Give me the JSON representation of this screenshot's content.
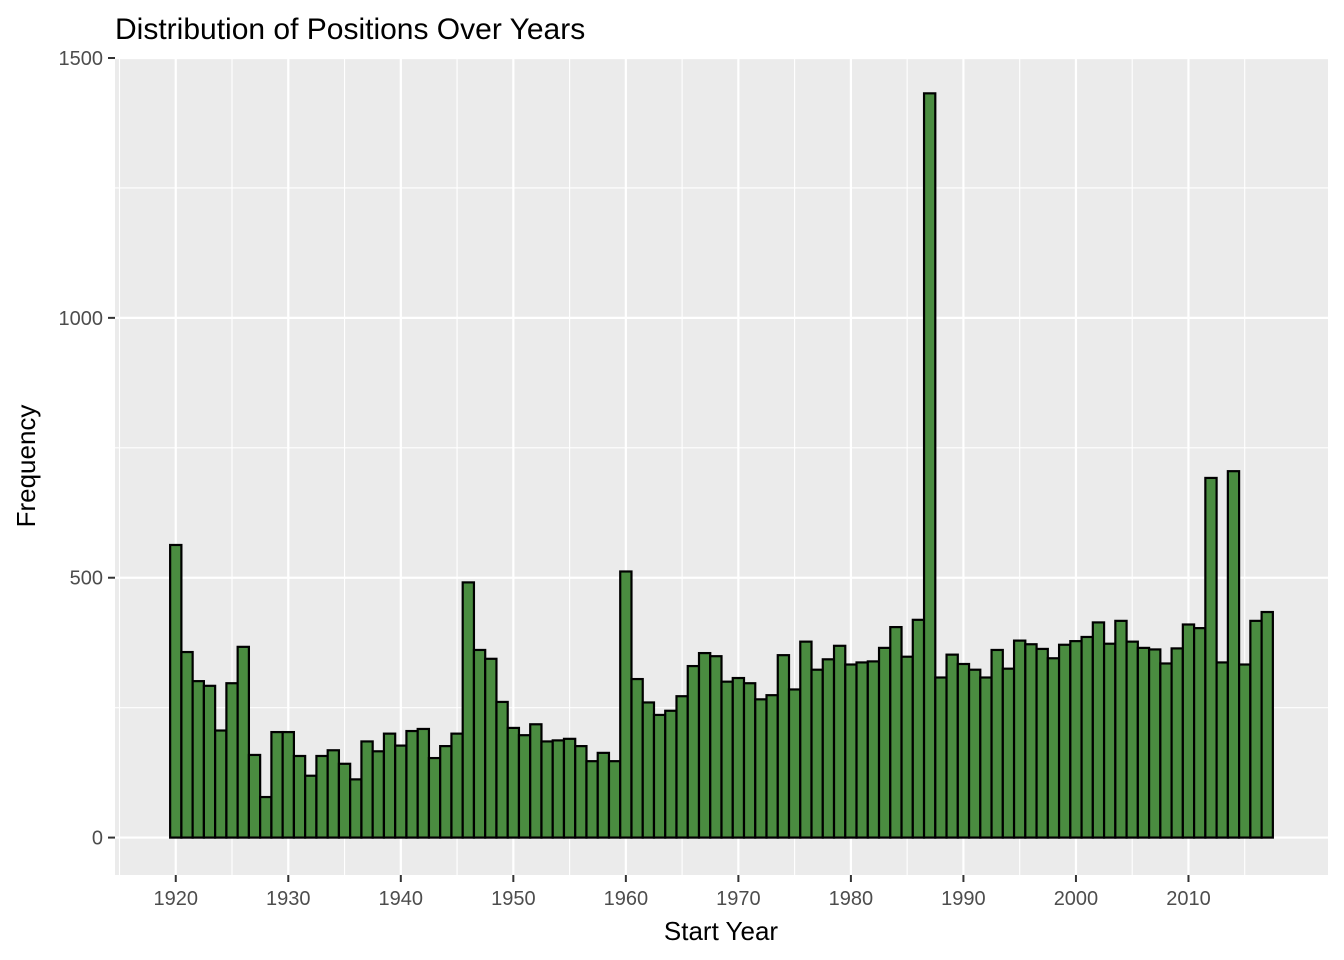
{
  "chart_data": {
    "type": "bar",
    "title": "Distribution of Positions Over Years",
    "xlabel": "Start Year",
    "ylabel": "Frequency",
    "xlim": [
      1914.6,
      2022.4
    ],
    "ylim": [
      -72,
      1500
    ],
    "x_ticks": [
      1920,
      1930,
      1940,
      1950,
      1960,
      1970,
      1980,
      1990,
      2000,
      2010
    ],
    "y_ticks": [
      0,
      500,
      1000,
      1500
    ],
    "grid": true,
    "legend": "none",
    "colors": {
      "bar_fill": "#4a8c40",
      "bar_outline": "#000000",
      "panel": "#ebebeb",
      "grid": "#ffffff"
    },
    "x": [
      1920,
      1921,
      1922,
      1923,
      1924,
      1925,
      1926,
      1927,
      1928,
      1929,
      1930,
      1931,
      1932,
      1933,
      1934,
      1935,
      1936,
      1937,
      1938,
      1939,
      1940,
      1941,
      1942,
      1943,
      1944,
      1945,
      1946,
      1947,
      1948,
      1949,
      1950,
      1951,
      1952,
      1953,
      1954,
      1955,
      1956,
      1957,
      1958,
      1959,
      1960,
      1961,
      1962,
      1963,
      1964,
      1965,
      1966,
      1967,
      1968,
      1969,
      1970,
      1971,
      1972,
      1973,
      1974,
      1975,
      1976,
      1977,
      1978,
      1979,
      1980,
      1981,
      1982,
      1983,
      1984,
      1985,
      1986,
      1987,
      1988,
      1989,
      1990,
      1991,
      1992,
      1993,
      1994,
      1995,
      1996,
      1997,
      1998,
      1999,
      2000,
      2001,
      2002,
      2003,
      2004,
      2005,
      2006,
      2007,
      2008,
      2009,
      2010,
      2011,
      2012,
      2013,
      2014,
      2015,
      2016,
      2017
    ],
    "values": [
      563,
      357,
      301,
      292,
      206,
      297,
      367,
      159,
      78,
      203,
      203,
      157,
      119,
      157,
      168,
      142,
      112,
      185,
      166,
      200,
      177,
      205,
      209,
      153,
      176,
      200,
      491,
      361,
      344,
      261,
      211,
      197,
      218,
      185,
      187,
      190,
      176,
      147,
      163,
      147,
      512,
      305,
      260,
      236,
      244,
      272,
      330,
      355,
      349,
      300,
      307,
      297,
      266,
      274,
      351,
      285,
      377,
      323,
      343,
      369,
      333,
      337,
      339,
      365,
      405,
      348,
      419,
      1432,
      308,
      352,
      334,
      323,
      308,
      361,
      325,
      379,
      372,
      363,
      345,
      371,
      378,
      386,
      414,
      373,
      417,
      377,
      365,
      362,
      335,
      364,
      410,
      403,
      692,
      337,
      705,
      333,
      417,
      434
    ]
  }
}
